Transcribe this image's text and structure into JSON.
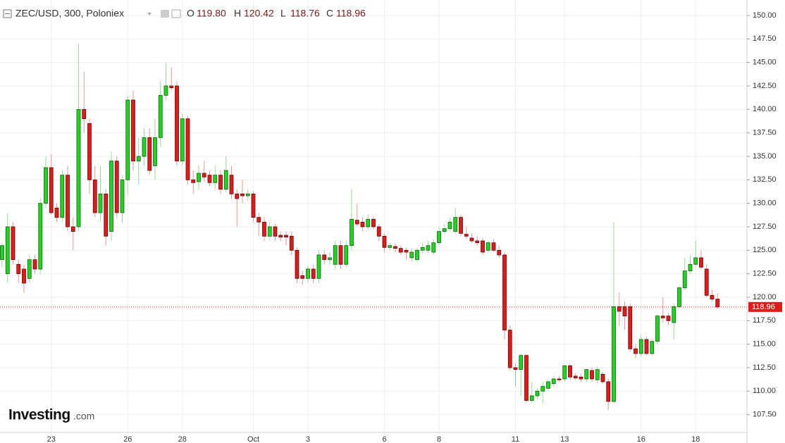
{
  "chart_data": {
    "type": "candlestick",
    "title": "ZEC/USD, 300, Poloniex",
    "legend_items": [
      {
        "key": "O",
        "value": "119.80"
      },
      {
        "key": "H",
        "value": "120.42"
      },
      {
        "key": "L",
        "value": "118.76"
      },
      {
        "key": "C",
        "value": "118.96"
      }
    ],
    "logo": {
      "brand": "Investing",
      "suffix": ".com"
    },
    "up_color": "#22d322",
    "down_color": "#dd1c1c",
    "grid": true,
    "last_price": 118.96,
    "last_price_label": "118.96",
    "ylim": [
      105.6,
      151.65
    ],
    "yticks": [
      {
        "value": 107.5,
        "label": "107.50"
      },
      {
        "value": 110,
        "label": "110.00"
      },
      {
        "value": 112.5,
        "label": "112.50"
      },
      {
        "value": 115,
        "label": "115.00"
      },
      {
        "value": 117.5,
        "label": "117.50"
      },
      {
        "value": 120,
        "label": "120.00"
      },
      {
        "value": 122.5,
        "label": "122.50"
      },
      {
        "value": 125,
        "label": "125.00"
      },
      {
        "value": 127.5,
        "label": "127.50"
      },
      {
        "value": 130,
        "label": "130.00"
      },
      {
        "value": 132.5,
        "label": "132.50"
      },
      {
        "value": 135,
        "label": "135.00"
      },
      {
        "value": 137.5,
        "label": "137.50"
      },
      {
        "value": 140,
        "label": "140.00"
      },
      {
        "value": 142.5,
        "label": "142.50"
      },
      {
        "value": 145,
        "label": "145.00"
      },
      {
        "value": 147.5,
        "label": "147.50"
      },
      {
        "value": 150,
        "label": "150.00"
      }
    ],
    "categories": [
      null,
      null,
      null,
      null,
      null,
      null,
      null,
      null,
      null,
      "23",
      null,
      null,
      null,
      null,
      null,
      null,
      null,
      null,
      null,
      null,
      null,
      null,
      null,
      "26",
      null,
      null,
      null,
      null,
      null,
      null,
      null,
      null,
      null,
      "28",
      null,
      null,
      null,
      null,
      null,
      null,
      null,
      null,
      null,
      null,
      null,
      null,
      "Oct",
      null,
      null,
      null,
      null,
      null,
      null,
      null,
      null,
      null,
      "3",
      null,
      null,
      null,
      null,
      null,
      null,
      null,
      null,
      null,
      null,
      null,
      null,
      null,
      "6",
      null,
      null,
      null,
      null,
      null,
      null,
      null,
      null,
      null,
      "8",
      null,
      null,
      null,
      null,
      null,
      null,
      null,
      null,
      null,
      null,
      null,
      null,
      null,
      "11",
      null,
      null,
      null,
      null,
      null,
      null,
      null,
      null,
      "13",
      null,
      null,
      null,
      null,
      null,
      null,
      null,
      null,
      null,
      null,
      null,
      null,
      null,
      "16",
      null,
      null,
      null,
      null,
      null,
      null,
      null,
      null,
      null,
      "18",
      null,
      null,
      null,
      null
    ],
    "ohlc": [
      [
        124,
        125.8,
        123.2,
        125.5
      ],
      [
        122.5,
        129,
        121.5,
        127.5
      ],
      [
        127.5,
        128,
        123.5,
        124
      ],
      [
        123.5,
        124,
        121.5,
        122.5
      ],
      [
        123,
        123.5,
        120.5,
        121.5
      ],
      [
        122,
        124.5,
        121.5,
        124
      ],
      [
        124,
        124.5,
        122.5,
        123
      ],
      [
        123,
        130.5,
        122.5,
        130
      ],
      [
        130,
        135,
        129.5,
        133.8
      ],
      [
        133.8,
        135.2,
        128.8,
        129
      ],
      [
        129.5,
        130,
        128,
        128.5
      ],
      [
        128.5,
        133.5,
        128,
        133
      ],
      [
        133,
        134,
        127,
        127.5
      ],
      [
        127.5,
        128.5,
        125,
        127
      ],
      [
        127.5,
        147,
        127,
        140
      ],
      [
        140,
        144,
        137.5,
        139
      ],
      [
        138.5,
        139,
        131,
        132.5
      ],
      [
        132.5,
        134,
        128.5,
        129
      ],
      [
        129,
        134,
        128,
        131
      ],
      [
        131,
        131.5,
        125.5,
        126.5
      ],
      [
        127,
        135.5,
        126,
        134.5
      ],
      [
        134.5,
        135,
        128.5,
        129
      ],
      [
        129,
        133,
        128,
        132.5
      ],
      [
        132.5,
        141.5,
        131,
        141
      ],
      [
        141,
        142,
        133.5,
        134.5
      ],
      [
        134.5,
        137,
        132,
        135
      ],
      [
        135,
        138,
        134,
        137
      ],
      [
        137,
        138,
        133,
        133.5
      ],
      [
        134,
        139,
        132.5,
        137
      ],
      [
        137,
        143,
        136,
        141.5
      ],
      [
        141.5,
        145,
        141,
        142.5
      ],
      [
        142.5,
        144.5,
        142,
        142.3
      ],
      [
        142.5,
        143,
        134,
        134.5
      ],
      [
        134.5,
        139.5,
        134,
        139
      ],
      [
        139,
        139.3,
        132,
        132.5
      ],
      [
        132.5,
        133.5,
        131,
        132.2
      ],
      [
        132.3,
        134,
        131.5,
        133.2
      ],
      [
        133.2,
        134.5,
        132.3,
        132.8
      ],
      [
        133,
        133.5,
        131.8,
        132.2
      ],
      [
        132.2,
        134,
        131.5,
        133
      ],
      [
        133,
        133.5,
        131,
        131.5
      ],
      [
        131.5,
        135,
        131.2,
        133.5
      ],
      [
        133,
        134,
        130.5,
        131
      ],
      [
        131,
        131.5,
        127.5,
        130.5
      ],
      [
        131,
        132.5,
        130,
        130.8
      ],
      [
        130.8,
        131.5,
        130.3,
        131
      ],
      [
        131,
        131.3,
        128,
        128.5
      ],
      [
        128.5,
        129,
        126.5,
        128
      ],
      [
        128,
        128.5,
        126,
        126.5
      ],
      [
        126.5,
        128,
        126,
        127.5
      ],
      [
        127.5,
        127.8,
        126,
        126.5
      ],
      [
        126.6,
        127,
        126,
        126.4
      ],
      [
        126.6,
        127,
        125.5,
        126.4
      ],
      [
        126.5,
        127,
        124.5,
        125
      ],
      [
        125,
        125.3,
        121.5,
        122
      ],
      [
        122.3,
        122.8,
        121.3,
        122
      ],
      [
        122,
        123.3,
        121.5,
        123
      ],
      [
        123,
        123.5,
        121.5,
        122
      ],
      [
        122,
        125,
        121.5,
        124.5
      ],
      [
        124.5,
        125,
        123.5,
        124
      ],
      [
        124,
        124.8,
        123.5,
        124.2
      ],
      [
        123.5,
        126,
        123,
        125.5
      ],
      [
        125.5,
        126,
        123,
        123.5
      ],
      [
        123.5,
        126,
        123.2,
        125.5
      ],
      [
        125.5,
        131.5,
        125,
        128.3
      ],
      [
        128.2,
        130,
        127.5,
        127.8
      ],
      [
        128,
        128.5,
        127,
        127.5
      ],
      [
        127.5,
        128.8,
        127.2,
        128.3
      ],
      [
        128.3,
        128.6,
        127.2,
        127.5
      ],
      [
        127.5,
        127.8,
        126,
        126.5
      ],
      [
        126.5,
        126.8,
        124.8,
        125.3
      ],
      [
        125.3,
        125.8,
        125,
        125.5
      ],
      [
        125.4,
        125.7,
        124.8,
        125.2
      ],
      [
        125.2,
        125.5,
        124.5,
        124.8
      ],
      [
        125,
        125.3,
        124,
        124.8
      ],
      [
        124.2,
        125.2,
        123.8,
        124.8
      ],
      [
        124,
        125.3,
        123.8,
        125
      ],
      [
        125,
        125.8,
        124.6,
        125.3
      ],
      [
        125,
        126,
        124.7,
        125.5
      ],
      [
        124.8,
        126.2,
        124.5,
        125.8
      ],
      [
        125.8,
        127.5,
        125.5,
        127
      ],
      [
        127,
        127.8,
        126.8,
        127.3
      ],
      [
        127.3,
        128.5,
        127,
        128
      ],
      [
        127,
        129.5,
        126.8,
        128.5
      ],
      [
        128.5,
        128.8,
        126.5,
        126.8
      ],
      [
        126.7,
        127.5,
        126.2,
        126.5
      ],
      [
        126.3,
        126.8,
        125.8,
        126
      ],
      [
        126,
        126.5,
        125.5,
        125.8
      ],
      [
        126,
        126.3,
        124.5,
        124.8
      ],
      [
        125,
        126,
        124.7,
        125.8
      ],
      [
        125.8,
        126.2,
        124.8,
        125
      ],
      [
        125,
        125.5,
        124.2,
        124.5
      ],
      [
        124.5,
        124.8,
        115.5,
        116.5
      ],
      [
        116.5,
        117,
        112.2,
        112.5
      ],
      [
        112.5,
        113,
        110.5,
        112.3
      ],
      [
        112.3,
        114,
        109.5,
        113.8
      ],
      [
        113.8,
        114,
        108.8,
        109
      ],
      [
        109,
        111,
        108.8,
        109.5
      ],
      [
        109.5,
        110.3,
        109.2,
        110
      ],
      [
        110,
        111,
        108.7,
        110.5
      ],
      [
        110.3,
        111.2,
        110,
        111
      ],
      [
        110.8,
        111.6,
        110.5,
        111.3
      ],
      [
        111.3,
        111.6,
        111,
        111.2
      ],
      [
        111.3,
        112.8,
        111,
        112.7
      ],
      [
        112.7,
        112.9,
        111.2,
        111.5
      ],
      [
        111.6,
        111.9,
        111.2,
        111.4
      ],
      [
        111.5,
        111.8,
        111,
        111.3
      ],
      [
        111.3,
        112.4,
        111,
        112.3
      ],
      [
        112.2,
        112.5,
        111,
        111.3
      ],
      [
        111.2,
        112.6,
        110.8,
        112.3
      ],
      [
        111.8,
        112,
        110.8,
        111
      ],
      [
        111,
        111.3,
        108,
        108.9
      ],
      [
        108.9,
        128,
        108.7,
        119
      ],
      [
        119,
        120.5,
        117,
        118.5
      ],
      [
        119,
        119.5,
        116.5,
        118
      ],
      [
        119,
        119.3,
        114.2,
        114.5
      ],
      [
        114.5,
        115,
        113.5,
        114
      ],
      [
        114,
        116,
        113.7,
        115.5
      ],
      [
        115.5,
        115.8,
        113.8,
        114
      ],
      [
        114,
        115.5,
        113.8,
        115.3
      ],
      [
        115.3,
        118.2,
        115,
        118
      ],
      [
        118,
        120,
        117.3,
        117.8
      ],
      [
        118,
        118.3,
        117,
        117.5
      ],
      [
        117.3,
        119.3,
        115.5,
        119
      ],
      [
        119,
        121.2,
        118.8,
        121
      ],
      [
        121,
        124.2,
        120.8,
        122.8
      ],
      [
        122.8,
        124.5,
        122.5,
        123.5
      ],
      [
        123.5,
        126,
        123.2,
        124.2
      ],
      [
        124.2,
        125,
        123,
        123.2
      ],
      [
        123,
        123.5,
        120,
        120.2
      ],
      [
        120.2,
        120.8,
        119.5,
        119.8
      ],
      [
        119.8,
        120.42,
        118.76,
        118.96
      ]
    ]
  }
}
